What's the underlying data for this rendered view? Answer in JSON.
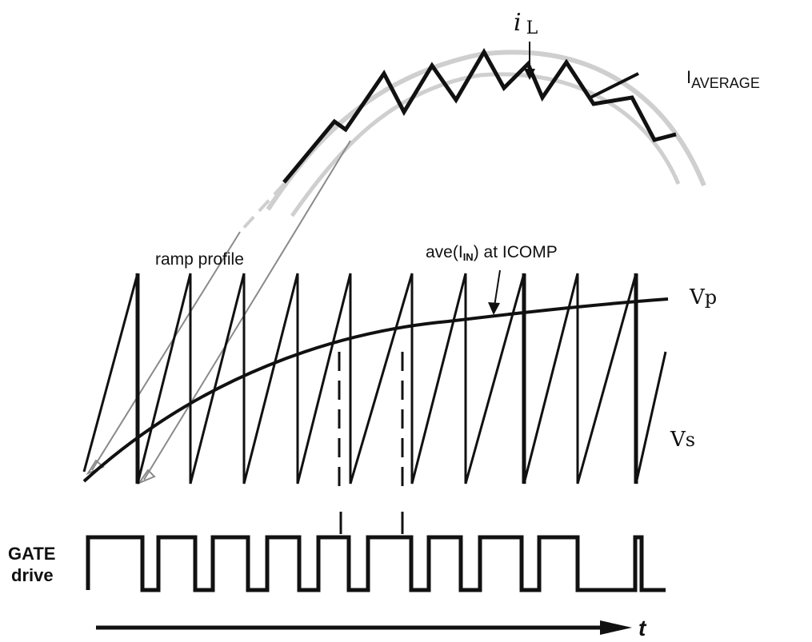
{
  "labels": {
    "il_main": "i",
    "il_sub": "L",
    "iavg_main": "I",
    "iavg_sub": "AVERAGE",
    "ramp_profile": "ramp profile",
    "ave_prefix": "ave(I",
    "ave_sub": "IN",
    "ave_suffix": ") at ICOMP",
    "vp_main": "V",
    "vp_sub": "p",
    "vs_main": "V",
    "vs_sub": "s",
    "gate_line1": "GATE",
    "gate_line2": "drive",
    "time_axis": "t"
  },
  "colors": {
    "ink": "#111111",
    "band": "#cfcfcf",
    "pointer": "#8a8a8a"
  }
}
